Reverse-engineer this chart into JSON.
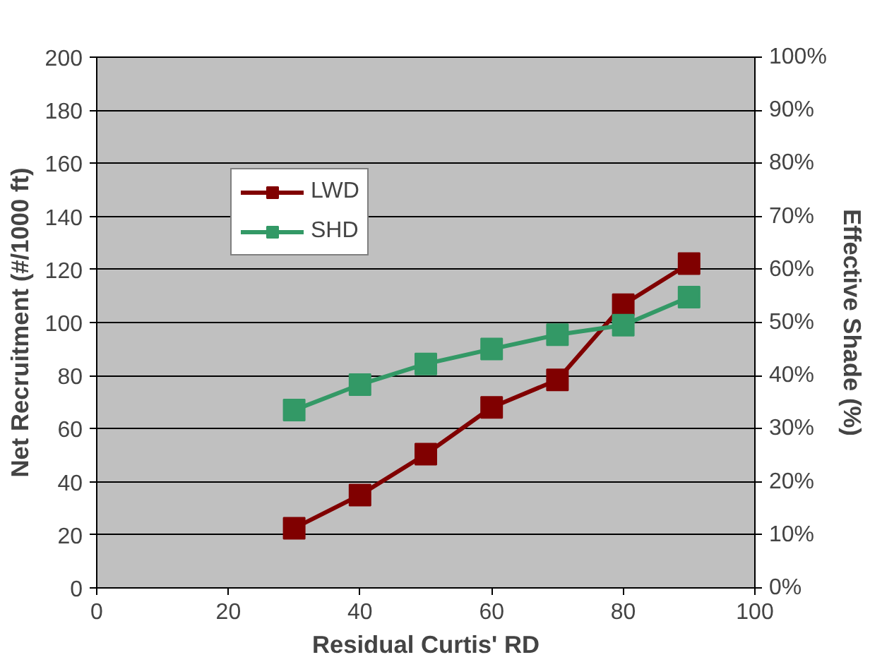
{
  "chart_data": {
    "type": "line",
    "xlabel": "Residual Curtis' RD",
    "ylabel": "Net Recruitment (#/1000 ft)",
    "y2label": "Effective Shade (%)",
    "x": [
      30,
      40,
      50,
      60,
      70,
      80,
      90
    ],
    "series": [
      {
        "name": "LWD",
        "color": "#800000",
        "values": [
          22.5,
          35,
          50.4,
          68,
          78.4,
          106.7,
          122.2
        ]
      },
      {
        "name": "SHD",
        "color": "#339966",
        "axis": "y2",
        "values": [
          33.5,
          38.3,
          42.2,
          45,
          47.7,
          49.5,
          54.8
        ]
      }
    ],
    "xlim": [
      0,
      100
    ],
    "xticks": [
      0,
      20,
      40,
      60,
      80,
      100
    ],
    "ylim": [
      0,
      200
    ],
    "yticks": [
      0,
      20,
      40,
      60,
      80,
      100,
      120,
      140,
      160,
      180,
      200
    ],
    "y2lim": [
      0,
      100
    ],
    "y2ticks": [
      {
        "value": 0,
        "label": "0%"
      },
      {
        "value": 10,
        "label": "10%"
      },
      {
        "value": 20,
        "label": "20%"
      },
      {
        "value": 30,
        "label": "30%"
      },
      {
        "value": 40,
        "label": "40%"
      },
      {
        "value": 50,
        "label": "50%"
      },
      {
        "value": 60,
        "label": "60%"
      },
      {
        "value": 70,
        "label": "70%"
      },
      {
        "value": 80,
        "label": "80%"
      },
      {
        "value": 90,
        "label": "90%"
      },
      {
        "value": 100,
        "label": "100%"
      }
    ],
    "grid": "y",
    "legend": "top left",
    "marker": "square",
    "line_style": "solid"
  }
}
